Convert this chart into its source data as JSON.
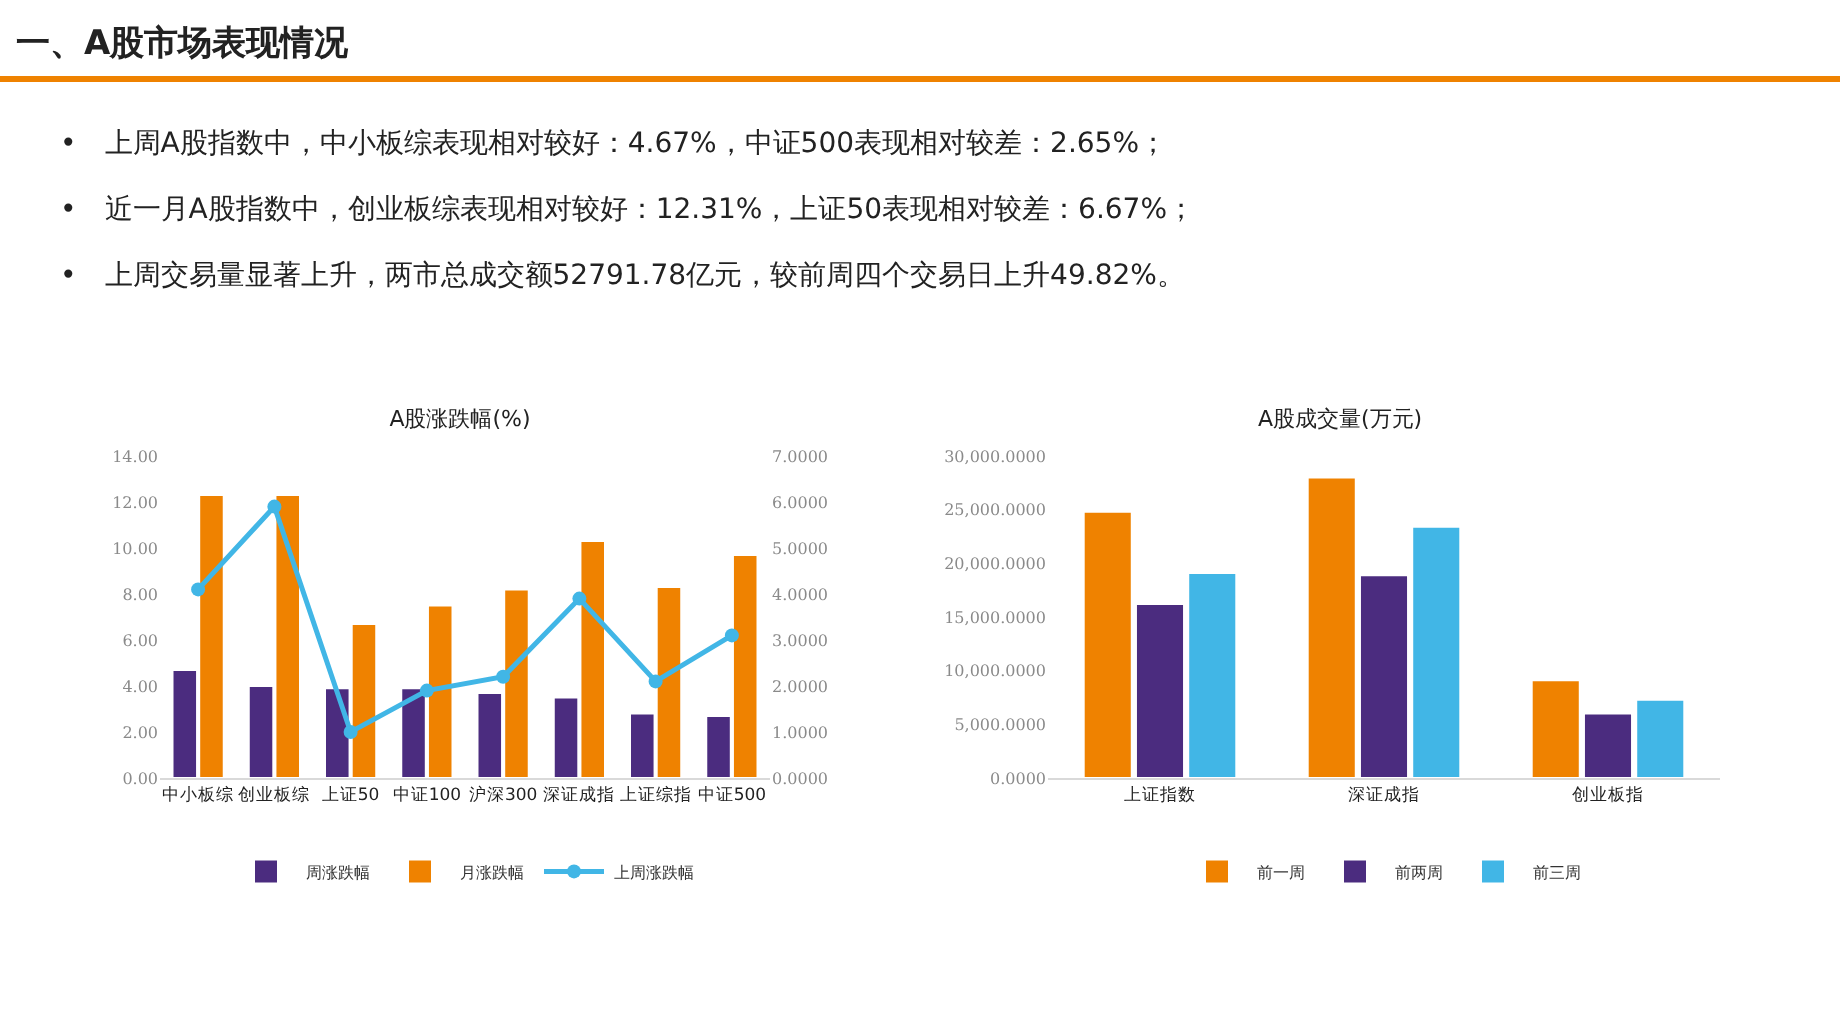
{
  "chart_data": [
    {
      "type": "other",
      "title": "一、A股市场表现情况",
      "annotations": [
        "•　上周A股指数中，中小板综表现相对较好：4.67%，中证500表现相对较差：2.65%；",
        "•　近一月A股指数中，创业板综表现相对较好：12.31%，上证50表现相对较差：6.67%；",
        "•　上周交易量显著上升，两市总成交额52791.78亿元，较前周四个交易日上升49.82%。"
      ]
    },
    {
      "type": "bar",
      "title": "A股涨跌幅(%)",
      "categories": [
        "中小板综",
        "创业板综",
        "上证50",
        "中证100",
        "沪深300",
        "深证成指",
        "上证综指",
        "中证500"
      ],
      "series": [
        {
          "name": "周涨跌幅",
          "color": "#4b2c7f",
          "values": [
            4.7,
            4.0,
            3.9,
            3.9,
            3.7,
            3.5,
            2.8,
            2.7
          ]
        },
        {
          "name": "月涨跌幅",
          "color": "#ef8200",
          "values": [
            12.3,
            12.3,
            6.7,
            7.5,
            8.2,
            10.3,
            8.3,
            9.7
          ]
        },
        {
          "name": "上周涨跌幅",
          "type": "line",
          "axis": "y2",
          "marker": "circle",
          "color": "#41b6e6",
          "values": [
            4.1,
            5.9,
            1.0,
            1.9,
            2.2,
            3.9,
            2.1,
            3.1
          ]
        }
      ],
      "ylim": [
        0,
        14
      ],
      "yticks": [
        {
          "value": 0,
          "label": "0.00"
        },
        {
          "value": 2,
          "label": "2.00"
        },
        {
          "value": 4,
          "label": "4.00"
        },
        {
          "value": 6,
          "label": "6.00"
        },
        {
          "value": 8,
          "label": "8.00"
        },
        {
          "value": 10,
          "label": "10.00"
        },
        {
          "value": 12,
          "label": "12.00"
        },
        {
          "value": 14,
          "label": "14.00"
        }
      ],
      "y2lim": [
        0,
        7
      ],
      "y2ticks": [
        {
          "value": 0,
          "label": "0.0000"
        },
        {
          "value": 1,
          "label": "1.0000"
        },
        {
          "value": 2,
          "label": "2.0000"
        },
        {
          "value": 3,
          "label": "3.0000"
        },
        {
          "value": 4,
          "label": "4.0000"
        },
        {
          "value": 5,
          "label": "5.0000"
        },
        {
          "value": 6,
          "label": "6.0000"
        },
        {
          "value": 7,
          "label": "7.0000"
        }
      ],
      "legend": "bottom"
    },
    {
      "type": "bar",
      "title": "A股成交量(万元)",
      "categories": [
        "上证指数",
        "深证成指",
        "创业板指"
      ],
      "series": [
        {
          "name": "前一周",
          "color": "#ef8200",
          "values": [
            24800,
            28000,
            9100
          ]
        },
        {
          "name": "前两周",
          "color": "#4b2c7f",
          "values": [
            16200,
            18900,
            6000
          ]
        },
        {
          "name": "前三周",
          "color": "#41b6e6",
          "values": [
            19100,
            23400,
            7300
          ]
        }
      ],
      "ylim": [
        0,
        30000
      ],
      "yticks": [
        {
          "value": 0,
          "label": "0.0000"
        },
        {
          "value": 5000,
          "label": "5,000.0000"
        },
        {
          "value": 10000,
          "label": "10,000.0000"
        },
        {
          "value": 15000,
          "label": "15,000.0000"
        },
        {
          "value": 20000,
          "label": "20,000.0000"
        },
        {
          "value": 25000,
          "label": "25,000.0000"
        },
        {
          "value": 30000,
          "label": "30,000.0000"
        }
      ],
      "legend": "bottom"
    }
  ]
}
